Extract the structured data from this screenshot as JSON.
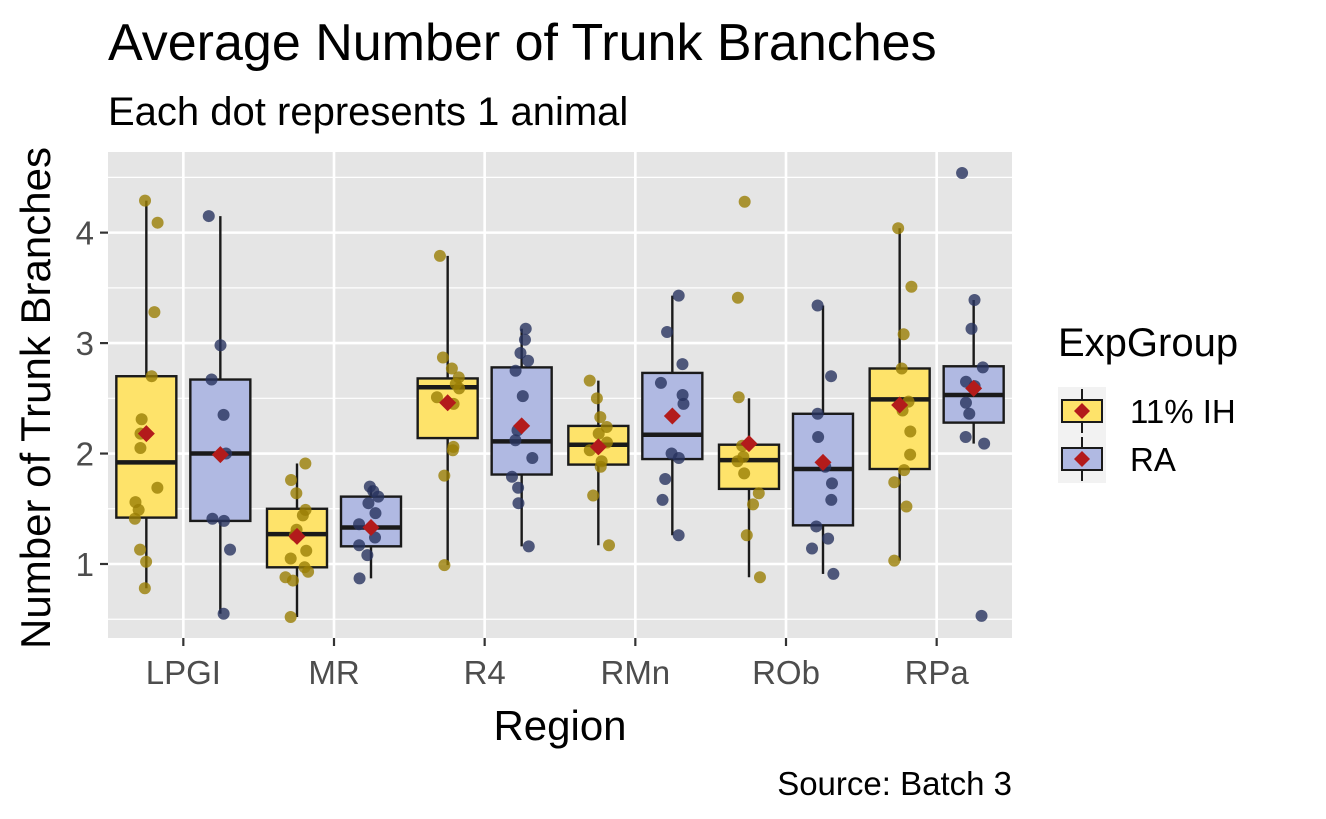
{
  "chart_data": {
    "type": "box",
    "title": "Average Number of Trunk Branches",
    "subtitle": "Each dot represents 1 animal",
    "xlabel": "Region",
    "ylabel": "Number of Trunk Branches",
    "caption": "Source: Batch 3",
    "categories": [
      "LPGI",
      "MR",
      "R4",
      "RMn",
      "ROb",
      "RPa"
    ],
    "ylim": [
      0.33,
      4.73
    ],
    "yticks": [
      1,
      2,
      3,
      4
    ],
    "grid": true,
    "legend": {
      "title": "ExpGroup",
      "position": "right",
      "entries": [
        "11% IH",
        "RA"
      ]
    },
    "colors": {
      "panel": "#e5e5e5",
      "grid": "#ffffff",
      "ih_fill": "#fee36a",
      "ih_point": "#9a7e05",
      "ra_fill": "#b0b9e2",
      "ra_point": "#28335f",
      "mean": "#b31b1b",
      "box_line": "#1a1a1a"
    },
    "series": [
      {
        "name": "11% IH",
        "boxes": [
          {
            "category": "LPGI",
            "min": 0.78,
            "q1": 1.42,
            "median": 1.92,
            "q3": 2.7,
            "max": 4.29,
            "mean": 2.18,
            "points": [
              0.78,
              1.02,
              1.13,
              1.41,
              1.49,
              1.56,
              1.69,
              2.05,
              2.18,
              2.31,
              2.7,
              3.28,
              4.09,
              4.29
            ]
          },
          {
            "category": "MR",
            "min": 0.52,
            "q1": 0.97,
            "median": 1.27,
            "q3": 1.5,
            "max": 1.91,
            "mean": 1.25,
            "points": [
              0.52,
              0.85,
              0.88,
              0.93,
              0.97,
              1.05,
              1.12,
              1.26,
              1.31,
              1.44,
              1.49,
              1.64,
              1.76,
              1.91
            ]
          },
          {
            "category": "R4",
            "min": 0.99,
            "q1": 2.14,
            "median": 2.6,
            "q3": 2.68,
            "max": 3.79,
            "mean": 2.46,
            "points": [
              0.99,
              1.8,
              2.03,
              2.06,
              2.45,
              2.51,
              2.59,
              2.63,
              2.69,
              2.77,
              2.87,
              3.79
            ]
          },
          {
            "category": "RMn",
            "min": 1.17,
            "q1": 1.9,
            "median": 2.08,
            "q3": 2.25,
            "max": 2.66,
            "mean": 2.06,
            "points": [
              1.17,
              1.62,
              1.88,
              1.93,
              2.03,
              2.1,
              2.18,
              2.24,
              2.33,
              2.5,
              2.66
            ]
          },
          {
            "category": "ROb",
            "min": 0.88,
            "q1": 1.68,
            "median": 1.94,
            "q3": 2.08,
            "max": 2.5,
            "mean": 2.09,
            "points": [
              0.88,
              1.26,
              1.54,
              1.64,
              1.82,
              1.93,
              1.97,
              2.07,
              2.51,
              3.41,
              4.28
            ]
          },
          {
            "category": "RPa",
            "min": 1.03,
            "q1": 1.86,
            "median": 2.49,
            "q3": 2.77,
            "max": 4.04,
            "mean": 2.44,
            "points": [
              1.03,
              1.52,
              1.74,
              1.85,
              1.99,
              2.2,
              2.39,
              2.47,
              2.77,
              3.08,
              3.51,
              4.04
            ]
          }
        ]
      },
      {
        "name": "RA",
        "boxes": [
          {
            "category": "LPGI",
            "min": 0.55,
            "q1": 1.39,
            "median": 2.0,
            "q3": 2.67,
            "max": 4.15,
            "mean": 1.99,
            "points": [
              0.55,
              1.13,
              1.39,
              1.41,
              2.0,
              2.35,
              2.67,
              2.98,
              4.15
            ]
          },
          {
            "category": "MR",
            "min": 0.87,
            "q1": 1.16,
            "median": 1.33,
            "q3": 1.61,
            "max": 1.71,
            "mean": 1.33,
            "points": [
              0.87,
              1.08,
              1.17,
              1.24,
              1.36,
              1.46,
              1.55,
              1.61,
              1.66,
              1.7
            ]
          },
          {
            "category": "R4",
            "min": 1.16,
            "q1": 1.81,
            "median": 2.11,
            "q3": 2.78,
            "max": 3.13,
            "mean": 2.25,
            "points": [
              1.16,
              1.55,
              1.69,
              1.79,
              1.96,
              2.12,
              2.21,
              2.52,
              2.75,
              2.84,
              2.91,
              3.03,
              3.13
            ]
          },
          {
            "category": "RMn",
            "min": 1.26,
            "q1": 1.95,
            "median": 2.17,
            "q3": 2.73,
            "max": 3.43,
            "mean": 2.34,
            "points": [
              1.26,
              1.58,
              1.77,
              1.96,
              2.0,
              2.45,
              2.53,
              2.64,
              2.81,
              3.1,
              3.43
            ]
          },
          {
            "category": "ROb",
            "min": 0.91,
            "q1": 1.35,
            "median": 1.86,
            "q3": 2.36,
            "max": 3.34,
            "mean": 1.92,
            "points": [
              0.91,
              1.14,
              1.23,
              1.34,
              1.58,
              1.73,
              1.88,
              2.15,
              2.36,
              2.7,
              3.34
            ]
          },
          {
            "category": "RPa",
            "min": 2.09,
            "q1": 2.28,
            "median": 2.53,
            "q3": 2.79,
            "max": 3.39,
            "mean": 2.59,
            "points": [
              0.53,
              2.09,
              2.15,
              2.36,
              2.46,
              2.61,
              2.65,
              2.78,
              3.13,
              3.39,
              4.54
            ]
          }
        ]
      }
    ]
  }
}
